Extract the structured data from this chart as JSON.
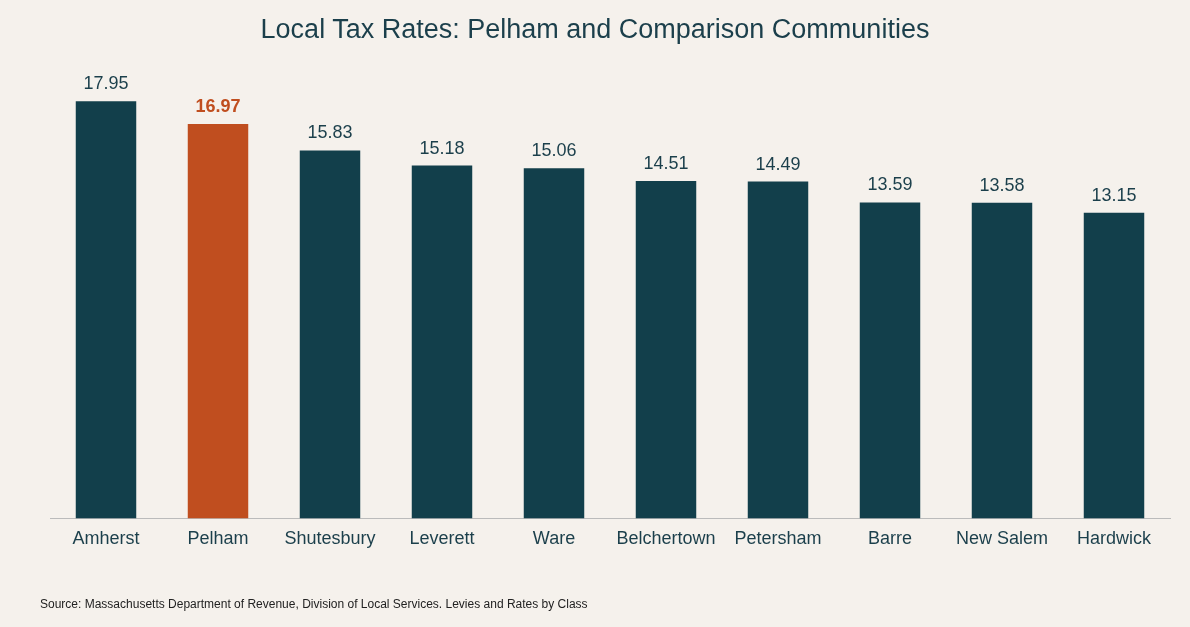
{
  "chart_data": {
    "type": "bar",
    "title": "Local Tax Rates: Pelham and Comparison Communities",
    "categories": [
      "Amherst",
      "Pelham",
      "Shutesbury",
      "Leverett",
      "Ware",
      "Belchertown",
      "Petersham",
      "Barre",
      "New Salem",
      "Hardwick"
    ],
    "values": [
      17.95,
      16.97,
      15.83,
      15.18,
      15.06,
      14.51,
      14.49,
      13.59,
      13.58,
      13.15
    ],
    "colors": [
      "#123f4b",
      "#c04e1f",
      "#123f4b",
      "#123f4b",
      "#123f4b",
      "#123f4b",
      "#123f4b",
      "#123f4b",
      "#123f4b",
      "#123f4b"
    ],
    "data_labels": true,
    "grid": false,
    "legend": false,
    "annotations": [
      "Source: Massachusetts Department of Revenue, Division of Local Services. Levies and Rates by Class"
    ]
  }
}
